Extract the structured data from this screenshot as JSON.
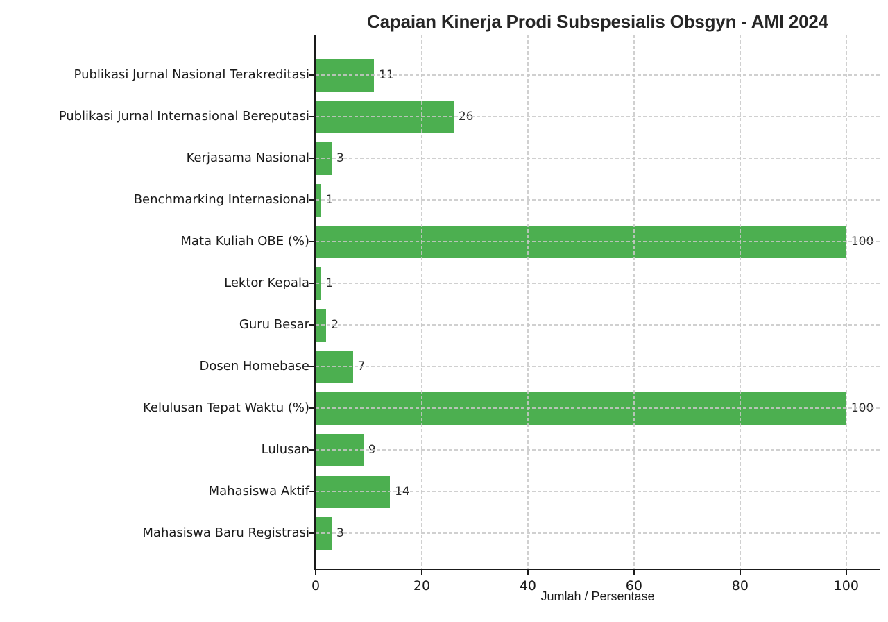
{
  "chart_data": {
    "type": "bar",
    "orientation": "horizontal",
    "title": "Capaian Kinerja Prodi Subspesialis Obsgyn - AMI 2024",
    "xlabel": "Jumlah / Persentase",
    "ylabel": "",
    "categories": [
      "Publikasi Jurnal Nasional Terakreditasi",
      "Publikasi Jurnal Internasional Bereputasi",
      "Kerjasama Nasional",
      "Benchmarking Internasional",
      "Mata Kuliah OBE (%)",
      "Lektor Kepala",
      "Guru Besar",
      "Dosen Homebase",
      "Kelulusan Tepat Waktu (%)",
      "Lulusan",
      "Mahasiswa Aktif",
      "Mahasiswa Baru Registrasi"
    ],
    "values": [
      11,
      26,
      3,
      1,
      100,
      1,
      2,
      7,
      100,
      9,
      14,
      3
    ],
    "xticks": [
      0,
      20,
      40,
      60,
      80,
      100
    ],
    "xlim": [
      0,
      106.3
    ],
    "bar_color": "#4caf50",
    "grid": "dashed-both-axes-over-bars",
    "grid_color": "#c8c8c8",
    "axis_color": "#1a1a1a",
    "legend_position": "none",
    "value_labels_shown": true
  }
}
